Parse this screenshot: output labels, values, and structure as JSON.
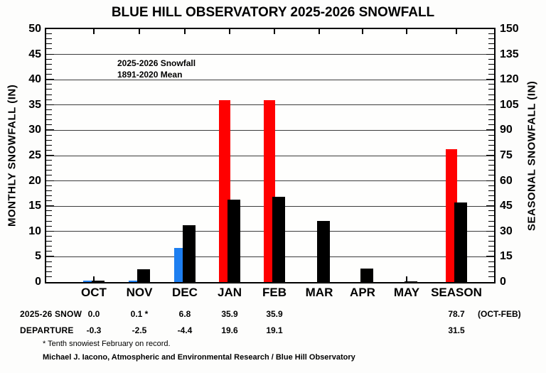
{
  "title": "BLUE HILL OBSERVATORY 2025-2026 SNOWFALL",
  "legend": {
    "items": [
      {
        "label": "2025-2026 Snowfall",
        "colors": [
          "#ff0000",
          "#1e7ff0"
        ]
      },
      {
        "label": "1891-2020 Mean",
        "colors": [
          "#000000"
        ]
      }
    ]
  },
  "chart_data": {
    "type": "bar",
    "categories": [
      "OCT",
      "NOV",
      "DEC",
      "JAN",
      "FEB",
      "MAR",
      "APR",
      "MAY",
      "SEASON"
    ],
    "series": [
      {
        "name": "2025-2026 Snowfall",
        "values": [
          0.0,
          0.1,
          6.8,
          35.9,
          35.9,
          null,
          null,
          null,
          78.7
        ],
        "bar_colors": [
          "#1e7ff0",
          "#1e7ff0",
          "#1e7ff0",
          "#ff0000",
          "#ff0000",
          null,
          null,
          null,
          "#ff0000"
        ]
      },
      {
        "name": "1891-2020 Mean",
        "values": [
          0.3,
          2.6,
          11.2,
          16.3,
          16.8,
          12.1,
          2.7,
          0.1,
          47.2
        ],
        "color": "#000000"
      }
    ],
    "left_axis": {
      "label": "MONTHLY SNOWFALL (IN)",
      "min": 0,
      "max": 50,
      "step": 5,
      "minor_step": 1
    },
    "right_axis": {
      "label": "SEASONAL SNOWFALL (IN)",
      "min": 0,
      "max": 150,
      "step": 15,
      "minor_step": 3
    },
    "season_category_uses_right_axis": true,
    "grid": true,
    "legend_position": "top-left-inside"
  },
  "table": {
    "rows": [
      {
        "label": "2025-26 SNOW",
        "values": [
          "0.0",
          "0.1 *",
          "6.8",
          "35.9",
          "35.9",
          "",
          "",
          "",
          "78.7"
        ],
        "suffix": "(OCT-FEB)"
      },
      {
        "label": "DEPARTURE",
        "values": [
          "-0.3",
          "-2.5",
          "-4.4",
          "19.6",
          "19.1",
          "",
          "",
          "",
          "31.5"
        ],
        "suffix": ""
      }
    ]
  },
  "footnote": "* Tenth snowiest February on record.",
  "credit": "Michael J. Iacono, Atmospheric and Environmental Research / Blue Hill Observatory"
}
